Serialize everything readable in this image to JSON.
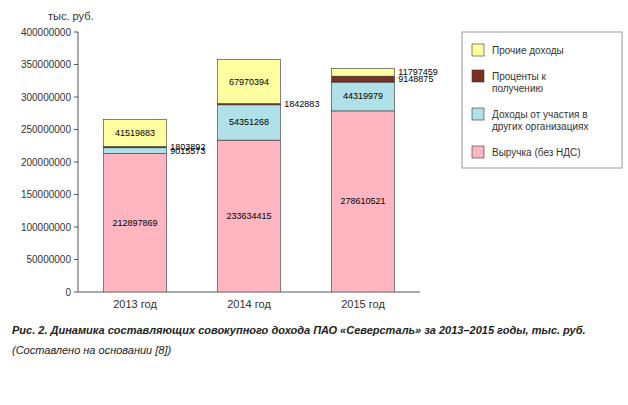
{
  "chart_data": {
    "type": "bar",
    "stacked": true,
    "title": "Рис. 2. Динамика составляющих совокупного дохода ПАО «Северсталь» за 2013–2015 годы, тыс. руб.",
    "subtitle": "(Составлено на основании [8])",
    "y_label": "тыс. руб.",
    "categories": [
      "2013 год",
      "2014 год",
      "2015 год"
    ],
    "series": [
      {
        "name": "Выручка (без НДС)",
        "color": "#FFB6C1",
        "values": [
          212897869,
          233634415,
          278610521
        ]
      },
      {
        "name": "Доходы от участия в\nдругих организациях",
        "color": "#B0E0E8",
        "values": [
          9015573,
          54351268,
          44319979
        ]
      },
      {
        "name": "Проценты к\nполучению",
        "color": "#7B3020",
        "values": [
          1803892,
          1842883,
          9148875
        ]
      },
      {
        "name": "Прочие доходы",
        "color": "#FFFFA0",
        "values": [
          41519883,
          67970394,
          11797459
        ]
      }
    ],
    "ylim": [
      0,
      400000000
    ],
    "yticks": [
      0,
      50000000,
      100000000,
      150000000,
      200000000,
      250000000,
      300000000,
      350000000,
      400000000
    ],
    "grid": false,
    "legend": "right",
    "data_labels": true
  }
}
